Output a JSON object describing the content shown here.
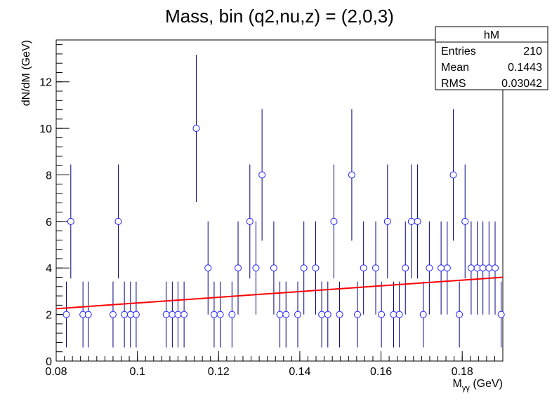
{
  "chart_data": {
    "type": "scatter",
    "title": "Mass, bin (q2,nu,z) = (2,0,3)",
    "xlabel_main": "M",
    "xlabel_sub": "γγ",
    "xlabel_unit": " (GeV)",
    "ylabel": "dN/dM (GeV)",
    "xlim": [
      0.08,
      0.19
    ],
    "ylim": [
      0,
      13.8
    ],
    "x_ticks": [
      0.08,
      0.1,
      0.12,
      0.14,
      0.16,
      0.18
    ],
    "x_tick_labels": [
      "0.08",
      "0.1",
      "0.12",
      "0.14",
      "0.16",
      "0.18"
    ],
    "y_ticks": [
      0,
      2,
      4,
      6,
      8,
      10,
      12
    ],
    "y_tick_labels": [
      "0",
      "2",
      "4",
      "6",
      "8",
      "10",
      "12"
    ],
    "grid": false,
    "point_color": "#1b1bff",
    "errorbar_color": "#000080",
    "fit_color": "#ff0000",
    "points": [
      {
        "x": 0.0825,
        "y": 2
      },
      {
        "x": 0.0836,
        "y": 6
      },
      {
        "x": 0.0866,
        "y": 2
      },
      {
        "x": 0.0879,
        "y": 2
      },
      {
        "x": 0.094,
        "y": 2
      },
      {
        "x": 0.0953,
        "y": 6
      },
      {
        "x": 0.0968,
        "y": 2
      },
      {
        "x": 0.0983,
        "y": 2
      },
      {
        "x": 0.0997,
        "y": 2
      },
      {
        "x": 0.1071,
        "y": 2
      },
      {
        "x": 0.1086,
        "y": 2
      },
      {
        "x": 0.11,
        "y": 2
      },
      {
        "x": 0.1115,
        "y": 2
      },
      {
        "x": 0.1145,
        "y": 10
      },
      {
        "x": 0.1174,
        "y": 4
      },
      {
        "x": 0.1189,
        "y": 2
      },
      {
        "x": 0.1204,
        "y": 2
      },
      {
        "x": 0.1233,
        "y": 2
      },
      {
        "x": 0.1248,
        "y": 4
      },
      {
        "x": 0.1277,
        "y": 6
      },
      {
        "x": 0.1292,
        "y": 4
      },
      {
        "x": 0.1307,
        "y": 8
      },
      {
        "x": 0.1336,
        "y": 4
      },
      {
        "x": 0.1351,
        "y": 2
      },
      {
        "x": 0.1366,
        "y": 2
      },
      {
        "x": 0.1395,
        "y": 2
      },
      {
        "x": 0.141,
        "y": 4
      },
      {
        "x": 0.1439,
        "y": 4
      },
      {
        "x": 0.1454,
        "y": 2
      },
      {
        "x": 0.1469,
        "y": 2
      },
      {
        "x": 0.1484,
        "y": 6
      },
      {
        "x": 0.1498,
        "y": 2
      },
      {
        "x": 0.1528,
        "y": 8
      },
      {
        "x": 0.1542,
        "y": 2
      },
      {
        "x": 0.1557,
        "y": 4
      },
      {
        "x": 0.1587,
        "y": 4
      },
      {
        "x": 0.1601,
        "y": 2
      },
      {
        "x": 0.1616,
        "y": 6
      },
      {
        "x": 0.1631,
        "y": 2
      },
      {
        "x": 0.1645,
        "y": 2
      },
      {
        "x": 0.166,
        "y": 4
      },
      {
        "x": 0.1675,
        "y": 6
      },
      {
        "x": 0.169,
        "y": 6
      },
      {
        "x": 0.1704,
        "y": 2
      },
      {
        "x": 0.1719,
        "y": 4
      },
      {
        "x": 0.1748,
        "y": 4
      },
      {
        "x": 0.1763,
        "y": 4
      },
      {
        "x": 0.1778,
        "y": 8
      },
      {
        "x": 0.1793,
        "y": 2
      },
      {
        "x": 0.1807,
        "y": 6
      },
      {
        "x": 0.1822,
        "y": 4
      },
      {
        "x": 0.1837,
        "y": 4
      },
      {
        "x": 0.1851,
        "y": 4
      },
      {
        "x": 0.1866,
        "y": 4
      },
      {
        "x": 0.1881,
        "y": 4
      },
      {
        "x": 0.1896,
        "y": 2
      }
    ],
    "fit_line": {
      "x": [
        0.08,
        0.19
      ],
      "y": [
        2.25,
        3.6
      ]
    },
    "stats": {
      "name": "hM",
      "rows": [
        {
          "label": "Entries",
          "value": "210"
        },
        {
          "label": "Mean",
          "value": "0.1443"
        },
        {
          "label": "RMS",
          "value": "0.03042"
        }
      ]
    }
  }
}
